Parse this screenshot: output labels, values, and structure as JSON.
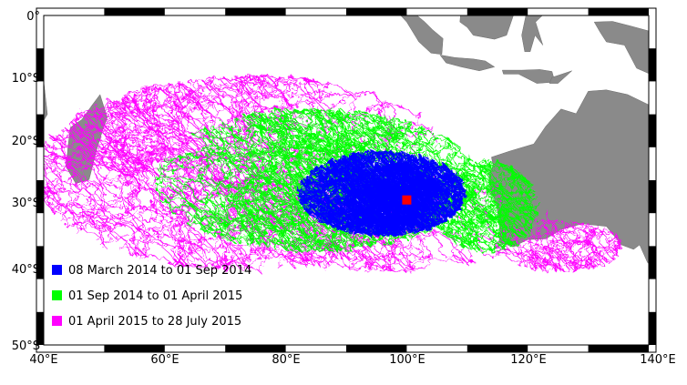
{
  "map": {
    "lon_labels": [
      "40°E",
      "60°E",
      "80°E",
      "100°E",
      "120°E",
      "140°E"
    ],
    "lat_labels": [
      "0°",
      "10°S",
      "20°S",
      "30°S",
      "40°S",
      "50°S"
    ],
    "lon_range": [
      40,
      140
    ],
    "lat_range": [
      0,
      -50
    ],
    "land_color": "#8a8a8a",
    "frame_pattern": "alternating black and white degree bars",
    "search_location": {
      "lon": 100.0,
      "lat": -28.0,
      "color": "#ff0000"
    }
  },
  "legend": {
    "placement": "bottom-left",
    "items": [
      {
        "label": "08 March 2014 to 01 Sep 2014",
        "color": "#0000ff"
      },
      {
        "label": "01 Sep 2014 to 01 April 2015",
        "color": "#00ff00"
      },
      {
        "label": "01 April 2015 to 28 July 2015",
        "color": "#ff00ff"
      }
    ]
  }
}
